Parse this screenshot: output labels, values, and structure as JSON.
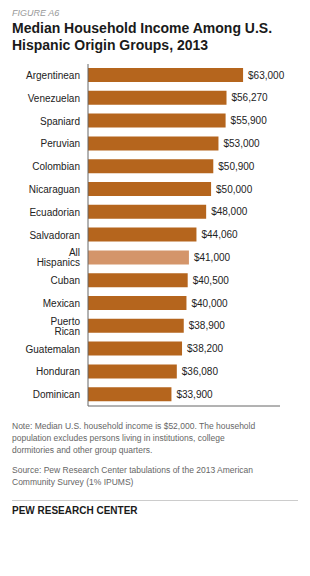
{
  "chart_data": {
    "type": "bar",
    "orientation": "horizontal",
    "figure_label": "FIGURE A6",
    "title": "Median Household Income Among U.S.\nHispanic Origin Groups, 2013",
    "categories": [
      "Argentinean",
      "Venezuelan",
      "Spaniard",
      "Peruvian",
      "Colombian",
      "Nicaraguan",
      "Ecuadorian",
      "Salvadoran",
      "All Hispanics",
      "Cuban",
      "Mexican",
      "Puerto Rican",
      "Guatemalan",
      "Honduran",
      "Dominican"
    ],
    "values": [
      63000,
      56270,
      55900,
      53000,
      50900,
      50000,
      48000,
      44060,
      41000,
      40500,
      40000,
      38900,
      38200,
      36080,
      33900
    ],
    "value_labels": [
      "$63,000",
      "$56,270",
      "$55,900",
      "$53,000",
      "$50,900",
      "$50,000",
      "$48,000",
      "$44,060",
      "$41,000",
      "$40,500",
      "$40,000",
      "$38,900",
      "$38,200",
      "$36,080",
      "$33,900"
    ],
    "colors": [
      "#b5651d",
      "#b5651d",
      "#b5651d",
      "#b5651d",
      "#b5651d",
      "#b5651d",
      "#b5651d",
      "#b5651d",
      "#d4956a",
      "#b5651d",
      "#b5651d",
      "#b5651d",
      "#b5651d",
      "#b5651d",
      "#b5651d"
    ],
    "xlim": [
      0,
      78000
    ],
    "data_labels": true,
    "tick_labels": "y",
    "note": [
      "Note: Median U.S. household income is $52,000. The household",
      "population excludes persons living in institutions, college",
      "dormitories and other group quarters."
    ],
    "source": [
      "Source: Pew Research Center tabulations of the 2013 American",
      "Community Survey (1% IPUMS)"
    ],
    "branding": "PEW RESEARCH CENTER"
  }
}
